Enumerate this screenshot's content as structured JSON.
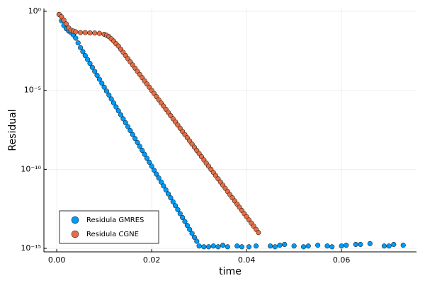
{
  "chart_data": {
    "type": "scatter",
    "xlabel": "time",
    "ylabel": "Residual",
    "xlim": [
      -0.0027,
      0.0758
    ],
    "ylim": [
      1.5,
      6e-16
    ],
    "log_y": true,
    "grid": true,
    "legend": "lower left",
    "xticks": [
      {
        "value": 0,
        "label": "0.00"
      },
      0.02,
      0.04,
      0.06
    ],
    "yticks": [
      {
        "value": 1,
        "label": "10⁰"
      },
      {
        "value": 1e-05,
        "label": "10⁻⁵"
      },
      {
        "value": 1e-10,
        "label": "10⁻¹⁰"
      },
      {
        "value": 1e-15,
        "label": "10⁻¹⁵"
      }
    ],
    "series": [
      {
        "name": "Residula GMRES",
        "color": "#009af9",
        "x": [
          0.0005,
          0.001,
          0.0015,
          0.002,
          0.0025,
          0.003,
          0.0035,
          0.004,
          0.0045,
          0.005,
          0.0055,
          0.006,
          0.0065,
          0.007,
          0.0075,
          0.008,
          0.0085,
          0.009,
          0.0095,
          0.01,
          0.0105,
          0.011,
          0.0115,
          0.012,
          0.0125,
          0.013,
          0.0135,
          0.014,
          0.0145,
          0.015,
          0.0155,
          0.016,
          0.0165,
          0.017,
          0.0175,
          0.018,
          0.0185,
          0.019,
          0.0195,
          0.02,
          0.0205,
          0.021,
          0.0215,
          0.022,
          0.0225,
          0.023,
          0.0235,
          0.024,
          0.0245,
          0.025,
          0.0255,
          0.026,
          0.0265,
          0.027,
          0.0275,
          0.028,
          0.0285,
          0.029,
          0.0295,
          0.03,
          0.031,
          0.032,
          0.033,
          0.034,
          0.035,
          0.036,
          0.038,
          0.039,
          0.0405,
          0.042,
          0.045,
          0.046,
          0.047,
          0.048,
          0.05,
          0.052,
          0.053,
          0.055,
          0.057,
          0.058,
          0.06,
          0.061,
          0.063,
          0.064,
          0.066,
          0.069,
          0.07,
          0.071,
          0.073
        ],
        "values": [
          0.63,
          0.25,
          0.126,
          0.079,
          0.056,
          0.045,
          0.032,
          0.02,
          0.01,
          0.00501,
          0.00282,
          0.00158,
          0.000891,
          0.000501,
          0.000282,
          0.000158,
          8.91e-05,
          5.01e-05,
          2.82e-05,
          1.58e-05,
          8.91e-06,
          5.01e-06,
          2.82e-06,
          1.58e-06,
          8.91e-07,
          5.01e-07,
          2.82e-07,
          1.58e-07,
          8.91e-08,
          5.01e-08,
          2.82e-08,
          1.58e-08,
          8.91e-09,
          5.01e-09,
          2.82e-09,
          1.58e-09,
          8.91e-10,
          5.01e-10,
          2.82e-10,
          1.58e-10,
          8.91e-11,
          5.01e-11,
          2.82e-11,
          1.58e-11,
          8.91e-12,
          5.01e-12,
          2.82e-12,
          1.58e-12,
          8.91e-13,
          5.01e-13,
          2.82e-13,
          1.58e-13,
          8.91e-14,
          5.01e-14,
          2.82e-14,
          1.58e-14,
          8.91e-15,
          5.01e-15,
          2.82e-15,
          1.41e-15,
          1.26e-15,
          1.26e-15,
          1.41e-15,
          1.26e-15,
          1.58e-15,
          1.26e-15,
          1.41e-15,
          1.26e-15,
          1.26e-15,
          1.41e-15,
          1.41e-15,
          1.26e-15,
          1.58e-15,
          1.78e-15,
          1.41e-15,
          1.26e-15,
          1.41e-15,
          1.58e-15,
          1.41e-15,
          1.26e-15,
          1.41e-15,
          1.58e-15,
          1.78e-15,
          1.78e-15,
          2e-15,
          1.41e-15,
          1.41e-15,
          1.78e-15,
          1.58e-15
        ]
      },
      {
        "name": "Residula CGNE",
        "color": "#e26f46",
        "x": [
          0.0005,
          0.001,
          0.0015,
          0.002,
          0.0025,
          0.003,
          0.0035,
          0.004,
          0.005,
          0.006,
          0.007,
          0.008,
          0.009,
          0.01,
          0.0105,
          0.011,
          0.0115,
          0.012,
          0.0125,
          0.013,
          0.0135,
          0.014,
          0.0145,
          0.015,
          0.0155,
          0.016,
          0.0165,
          0.017,
          0.0175,
          0.018,
          0.0185,
          0.019,
          0.0195,
          0.02,
          0.0205,
          0.021,
          0.0215,
          0.022,
          0.0225,
          0.023,
          0.0235,
          0.024,
          0.0245,
          0.025,
          0.0255,
          0.026,
          0.0265,
          0.027,
          0.0275,
          0.028,
          0.0285,
          0.029,
          0.0295,
          0.03,
          0.0305,
          0.031,
          0.0315,
          0.032,
          0.0325,
          0.033,
          0.0335,
          0.034,
          0.0345,
          0.035,
          0.0355,
          0.036,
          0.0365,
          0.037,
          0.0375,
          0.038,
          0.0385,
          0.039,
          0.0395,
          0.04,
          0.0405,
          0.041,
          0.0415,
          0.042,
          0.0425
        ],
        "values": [
          0.63,
          0.45,
          0.28,
          0.16,
          0.089,
          0.063,
          0.056,
          0.05,
          0.045,
          0.045,
          0.043,
          0.042,
          0.04,
          0.035,
          0.03,
          0.025,
          0.018,
          0.013,
          0.0089,
          0.0063,
          0.004,
          0.00251,
          0.00158,
          0.001,
          0.000631,
          0.000398,
          0.000251,
          0.000158,
          0.0001,
          6.31e-05,
          3.98e-05,
          2.51e-05,
          1.58e-05,
          1e-05,
          6.31e-06,
          3.98e-06,
          2.51e-06,
          1.58e-06,
          1e-06,
          6.31e-07,
          3.98e-07,
          2.51e-07,
          1.58e-07,
          1e-07,
          6.31e-08,
          3.98e-08,
          2.51e-08,
          1.58e-08,
          1e-08,
          6.31e-09,
          3.98e-09,
          2.51e-09,
          1.58e-09,
          1e-09,
          6.31e-10,
          3.98e-10,
          2.51e-10,
          1.58e-10,
          1e-10,
          6.31e-11,
          3.98e-11,
          2.51e-11,
          1.58e-11,
          1e-11,
          6.31e-12,
          3.98e-12,
          2.51e-12,
          1.58e-12,
          1e-12,
          6.31e-13,
          3.98e-13,
          2.51e-13,
          1.58e-13,
          1e-13,
          6.31e-14,
          3.98e-14,
          2.51e-14,
          1.58e-14,
          1e-14
        ]
      }
    ]
  }
}
